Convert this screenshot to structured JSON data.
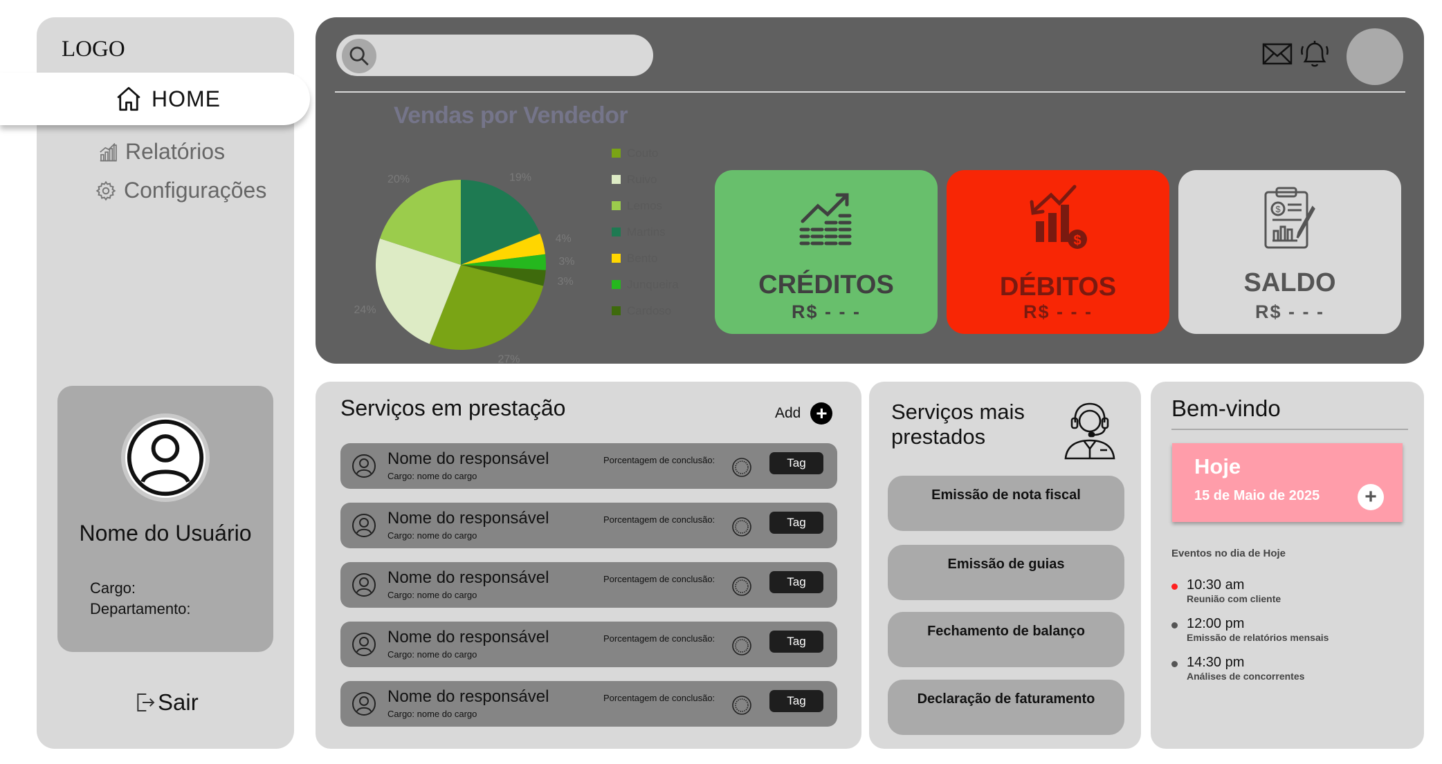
{
  "sidebar": {
    "logo": "LOGO",
    "nav": {
      "home": "HOME",
      "reports": "Relatórios",
      "settings": "Configurações"
    },
    "user": {
      "name": "Nome do Usuário",
      "cargo_label": "Cargo:",
      "dept_label": "Departamento:"
    },
    "logout": "Sair"
  },
  "header": {
    "search_placeholder": "",
    "icons": [
      "search-icon",
      "mail-icon",
      "bell-icon",
      "avatar"
    ]
  },
  "chart_data": {
    "type": "pie",
    "title": "Vendas por Vendedor",
    "series": [
      {
        "name": "Couto",
        "value": 27,
        "color": "#7aa415"
      },
      {
        "name": "Ruivo",
        "value": 24,
        "color": "#ddebc5"
      },
      {
        "name": "Lemos",
        "value": 20,
        "color": "#9bcc4c"
      },
      {
        "name": "Martins",
        "value": 19,
        "color": "#1e7a52"
      },
      {
        "name": "Bento",
        "value": 4,
        "color": "#ffd600"
      },
      {
        "name": "Junqueira",
        "value": 3,
        "color": "#25b81e"
      },
      {
        "name": "Cardoso",
        "value": 3,
        "color": "#3e6a0c"
      }
    ],
    "legend_position": "right"
  },
  "cards": {
    "credits": {
      "title": "CRÉDITOS",
      "value": "R$ - - -",
      "color": "#68bf6c"
    },
    "debits": {
      "title": "DÉBITOS",
      "value": "R$ - - -",
      "color": "#f82605"
    },
    "balance": {
      "title": "SALDO",
      "value": "R$ - - -",
      "color": "#d9d9d9"
    }
  },
  "services": {
    "title": "Serviços em prestação",
    "add_label": "Add",
    "rows": [
      {
        "name": "Nome do responsável",
        "cargo": "Cargo: nome do cargo",
        "progress_label": "Porcentagem de conclusão:",
        "tag": "Tag"
      },
      {
        "name": "Nome do responsável",
        "cargo": "Cargo: nome do cargo",
        "progress_label": "Porcentagem de conclusão:",
        "tag": "Tag"
      },
      {
        "name": "Nome do responsável",
        "cargo": "Cargo: nome do cargo",
        "progress_label": "Porcentagem de conclusão:",
        "tag": "Tag"
      },
      {
        "name": "Nome do responsável",
        "cargo": "Cargo: nome do cargo",
        "progress_label": "Porcentagem de conclusão:",
        "tag": "Tag"
      },
      {
        "name": "Nome do responsável",
        "cargo": "Cargo: nome do cargo",
        "progress_label": "Porcentagem de conclusão:",
        "tag": "Tag"
      }
    ]
  },
  "top_services": {
    "title": "Serviços mais prestados",
    "items": [
      "Emissão de nota fiscal",
      "Emissão de guias",
      "Fechamento de balanço",
      "Declaração de faturamento"
    ]
  },
  "welcome": {
    "title": "Bem-vindo",
    "today_label": "Hoje",
    "today_date": "15 de Maio de 2025",
    "events_label": "Eventos no dia de Hoje",
    "events": [
      {
        "time": "10:30 am",
        "desc": "Reunião com cliente",
        "dot_color": "#ff2020"
      },
      {
        "time": "12:00 pm",
        "desc": "Emissão de relatórios mensais",
        "dot_color": "#555555"
      },
      {
        "time": "14:30 pm",
        "desc": "Análises de concorrentes",
        "dot_color": "#555555"
      }
    ]
  }
}
